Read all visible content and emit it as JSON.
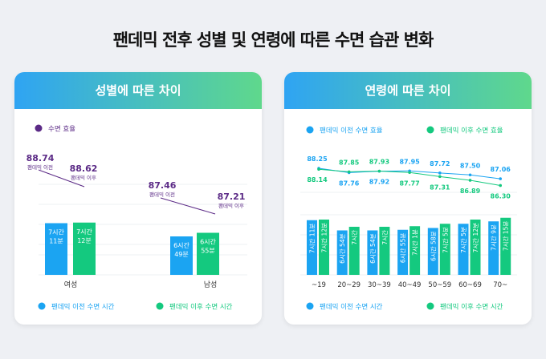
{
  "title": "팬데믹 전후 성별 및 연령에 따른 수면 습관 변화",
  "colors": {
    "before": "#1ba4f2",
    "after": "#14c97f",
    "efficiency": "#5b2a86"
  },
  "chart_data": [
    {
      "type": "bar+line",
      "title": "성별에 따른 차이",
      "categories": [
        "여성",
        "남성"
      ],
      "efficiency_legend": "수면 효율",
      "efficiency": {
        "before": [
          88.74,
          87.46
        ],
        "after": [
          88.62,
          87.21
        ],
        "before_label": "팬데믹 이전",
        "after_label": "팬데믹 이후"
      },
      "sleep_minutes": {
        "before": [
          431,
          409
        ],
        "after": [
          432,
          415
        ]
      },
      "bar_labels": {
        "before": [
          [
            "7시간",
            "11분"
          ],
          [
            "6시간",
            "49분"
          ]
        ],
        "after": [
          [
            "7시간",
            "12분"
          ],
          [
            "6시간",
            "55분"
          ]
        ]
      },
      "legend": [
        "팬데믹 이전 수면 시간",
        "팬데믹 이후 수면 시간"
      ]
    },
    {
      "type": "bar+line",
      "title": "연령에 따른 차이",
      "categories": [
        "~19",
        "20~29",
        "30~39",
        "40~49",
        "50~59",
        "60~69",
        "70~"
      ],
      "line_legend": [
        "팬데믹 이전 수면 효율",
        "팬데믹 이후 수면 효율"
      ],
      "efficiency": {
        "before": [
          88.25,
          87.76,
          87.92,
          87.95,
          87.72,
          87.5,
          87.06
        ],
        "after": [
          88.14,
          87.85,
          87.93,
          87.77,
          87.31,
          86.89,
          86.3
        ]
      },
      "sleep_minutes": {
        "before": [
          431,
          414,
          414,
          415,
          418,
          425,
          429
        ],
        "after": [
          432,
          420,
          420,
          421,
          425,
          432,
          435
        ]
      },
      "bar_labels": {
        "before": [
          "7시간 11분",
          "6시간 54분",
          "6시간 54분",
          "6시간 55분",
          "6시간 58분",
          "7시간 5분",
          "7시간 9분"
        ],
        "after": [
          "7시간 12분",
          "7시간",
          "7시간",
          "7시간 1분",
          "7시간 5분",
          "7시간 12분",
          "7시간 15분"
        ]
      },
      "legend": [
        "팬데믹 이전 수면 시간",
        "팬데믹 이후 수면 시간"
      ]
    }
  ]
}
